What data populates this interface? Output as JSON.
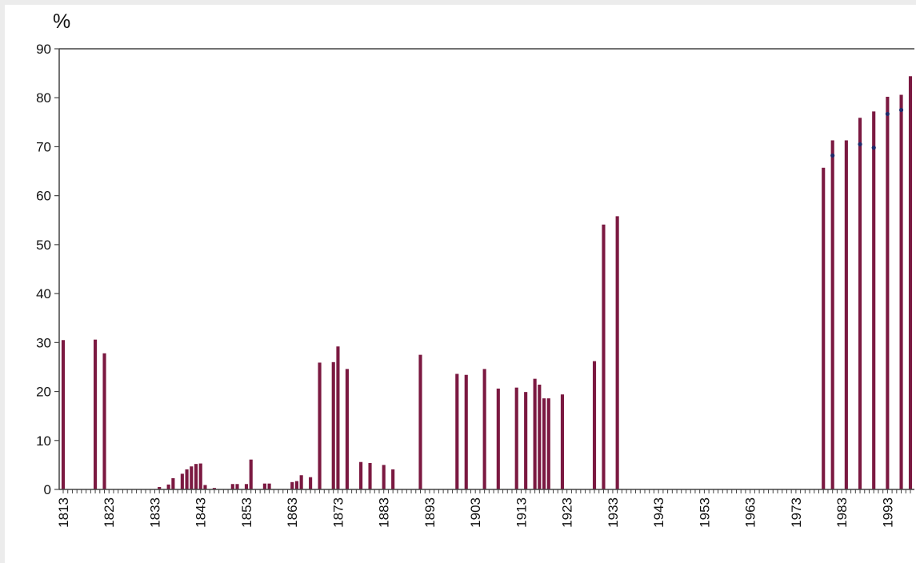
{
  "chart_data": {
    "type": "bar",
    "ylabel": "%",
    "ylim": [
      0,
      90
    ],
    "yticks": [
      0,
      10,
      20,
      30,
      40,
      50,
      60,
      70,
      80,
      90
    ],
    "xlim": [
      1813,
      1998
    ],
    "xticks": [
      "1813",
      "1823",
      "1833",
      "1843",
      "1853",
      "1863",
      "1873",
      "1883",
      "1893",
      "1903",
      "1913",
      "1923",
      "1933",
      "1943",
      "1953",
      "1963",
      "1973",
      "1983",
      "1993"
    ],
    "colors": {
      "bar": "#7b1941",
      "marker": "#1f2a6b",
      "axis": "#444444"
    },
    "series": [
      {
        "x": [
          1813,
          1820,
          1822,
          1834,
          1836,
          1837,
          1839,
          1840,
          1841,
          1842,
          1843,
          1844,
          1846,
          1850,
          1851,
          1853,
          1854,
          1857,
          1858,
          1863,
          1864,
          1865,
          1867,
          1869,
          1872,
          1873,
          1875,
          1878,
          1880,
          1883,
          1885,
          1891,
          1899,
          1901,
          1905,
          1908,
          1912,
          1914,
          1916,
          1917,
          1918,
          1919,
          1922,
          1929,
          1931,
          1934,
          1979,
          1981,
          1984,
          1987,
          1990,
          1993,
          1996,
          1998
        ],
        "values": [
          30.5,
          30.6,
          27.8,
          0.5,
          1.0,
          2.3,
          3.2,
          4.1,
          4.7,
          5.2,
          5.3,
          0.9,
          0.3,
          1.1,
          1.1,
          1.1,
          6.1,
          1.2,
          1.2,
          1.5,
          1.7,
          2.9,
          2.5,
          25.9,
          26.0,
          29.2,
          24.6,
          5.6,
          5.4,
          5.0,
          4.1,
          27.5,
          23.6,
          23.4,
          24.6,
          20.6,
          20.8,
          19.9,
          22.6,
          21.4,
          18.6,
          18.6,
          19.4,
          26.2,
          54.1,
          55.8,
          65.7,
          71.3,
          71.3,
          75.9,
          77.2,
          80.2,
          80.6,
          84.4
        ]
      }
    ],
    "markers": {
      "x": [
        1981,
        1987,
        1990,
        1993,
        1996
      ],
      "values": [
        68.2,
        70.5,
        69.8,
        76.7,
        77.5
      ]
    }
  }
}
